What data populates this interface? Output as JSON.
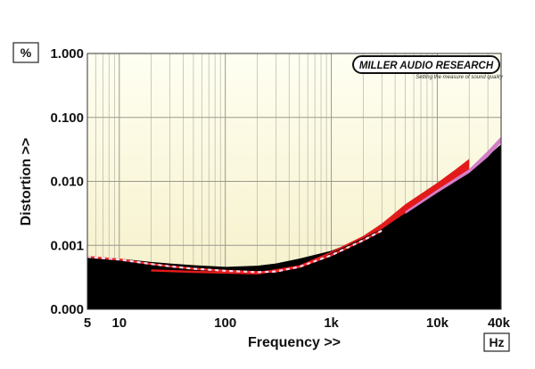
{
  "chart_data": {
    "type": "line",
    "x_scale": "log",
    "y_scale": "log",
    "xlabel": "Frequency >>",
    "ylabel": "Distortion >>",
    "y_unit": "%",
    "x_unit": "Hz",
    "xlim": [
      5,
      40000
    ],
    "ylim": [
      0.0001,
      1.0
    ],
    "x_ticks": [
      {
        "value": 5,
        "label": "5"
      },
      {
        "value": 10,
        "label": "10"
      },
      {
        "value": 100,
        "label": "100"
      },
      {
        "value": 1000,
        "label": "1k"
      },
      {
        "value": 10000,
        "label": "10k"
      },
      {
        "value": 40000,
        "label": "40k"
      }
    ],
    "y_ticks": [
      {
        "value": 0.0001,
        "label": "0.000"
      },
      {
        "value": 0.001,
        "label": "0.001"
      },
      {
        "value": 0.01,
        "label": "0.010"
      },
      {
        "value": 0.1,
        "label": "0.100"
      },
      {
        "value": 1.0,
        "label": "1.000"
      }
    ],
    "grid": true,
    "logo": {
      "main": "MILLER AUDIO RESEARCH",
      "tagline": "Setting the measure of sound quality"
    },
    "colors": {
      "background": "#fbf8dd",
      "grid_major": "#9a9a8e",
      "grid_minor": "#b6b6a8",
      "black_area": "#000000",
      "red_band": "#e21a1a",
      "pink_band": "#d27ec8",
      "dash_red": "#ff2a2a",
      "dash_white": "#f4dcef"
    },
    "series": [
      {
        "style": "black-fill",
        "x": [
          5,
          10,
          20,
          30,
          50,
          100,
          200,
          300,
          500,
          1000,
          2000,
          3000,
          5000,
          10000,
          20000,
          40000
        ],
        "y": [
          0.00068,
          0.00062,
          0.00055,
          0.00052,
          0.00049,
          0.00046,
          0.00048,
          0.00052,
          0.00062,
          0.00082,
          0.0013,
          0.0019,
          0.0032,
          0.0068,
          0.014,
          0.038
        ]
      },
      {
        "style": "red-band",
        "x": [
          20,
          50,
          100,
          200,
          500,
          1000,
          2000,
          3000,
          5000,
          10000,
          15000,
          20000
        ],
        "y_low": [
          0.00039,
          0.00037,
          0.00036,
          0.00035,
          0.00044,
          0.00075,
          0.0013,
          0.0018,
          0.0032,
          0.0068,
          0.0108,
          0.0145
        ],
        "y_high": [
          0.00042,
          0.0004,
          0.00039,
          0.00038,
          0.00049,
          0.0008,
          0.0014,
          0.0022,
          0.0044,
          0.0095,
          0.0155,
          0.0225
        ]
      },
      {
        "style": "pink-band",
        "x": [
          5000,
          10000,
          20000,
          30000,
          40000
        ],
        "y_low": [
          0.0031,
          0.0066,
          0.0135,
          0.024,
          0.04
        ],
        "y_high": [
          0.0034,
          0.0074,
          0.0155,
          0.03,
          0.05
        ]
      },
      {
        "style": "dashed",
        "x": [
          5,
          10,
          20,
          30,
          50,
          100,
          200,
          300,
          500,
          1000,
          2000,
          3000
        ],
        "y": [
          0.00066,
          0.0006,
          0.00051,
          0.00047,
          0.00043,
          0.0004,
          0.00038,
          0.00039,
          0.00046,
          0.0007,
          0.0012,
          0.0017
        ]
      }
    ]
  }
}
